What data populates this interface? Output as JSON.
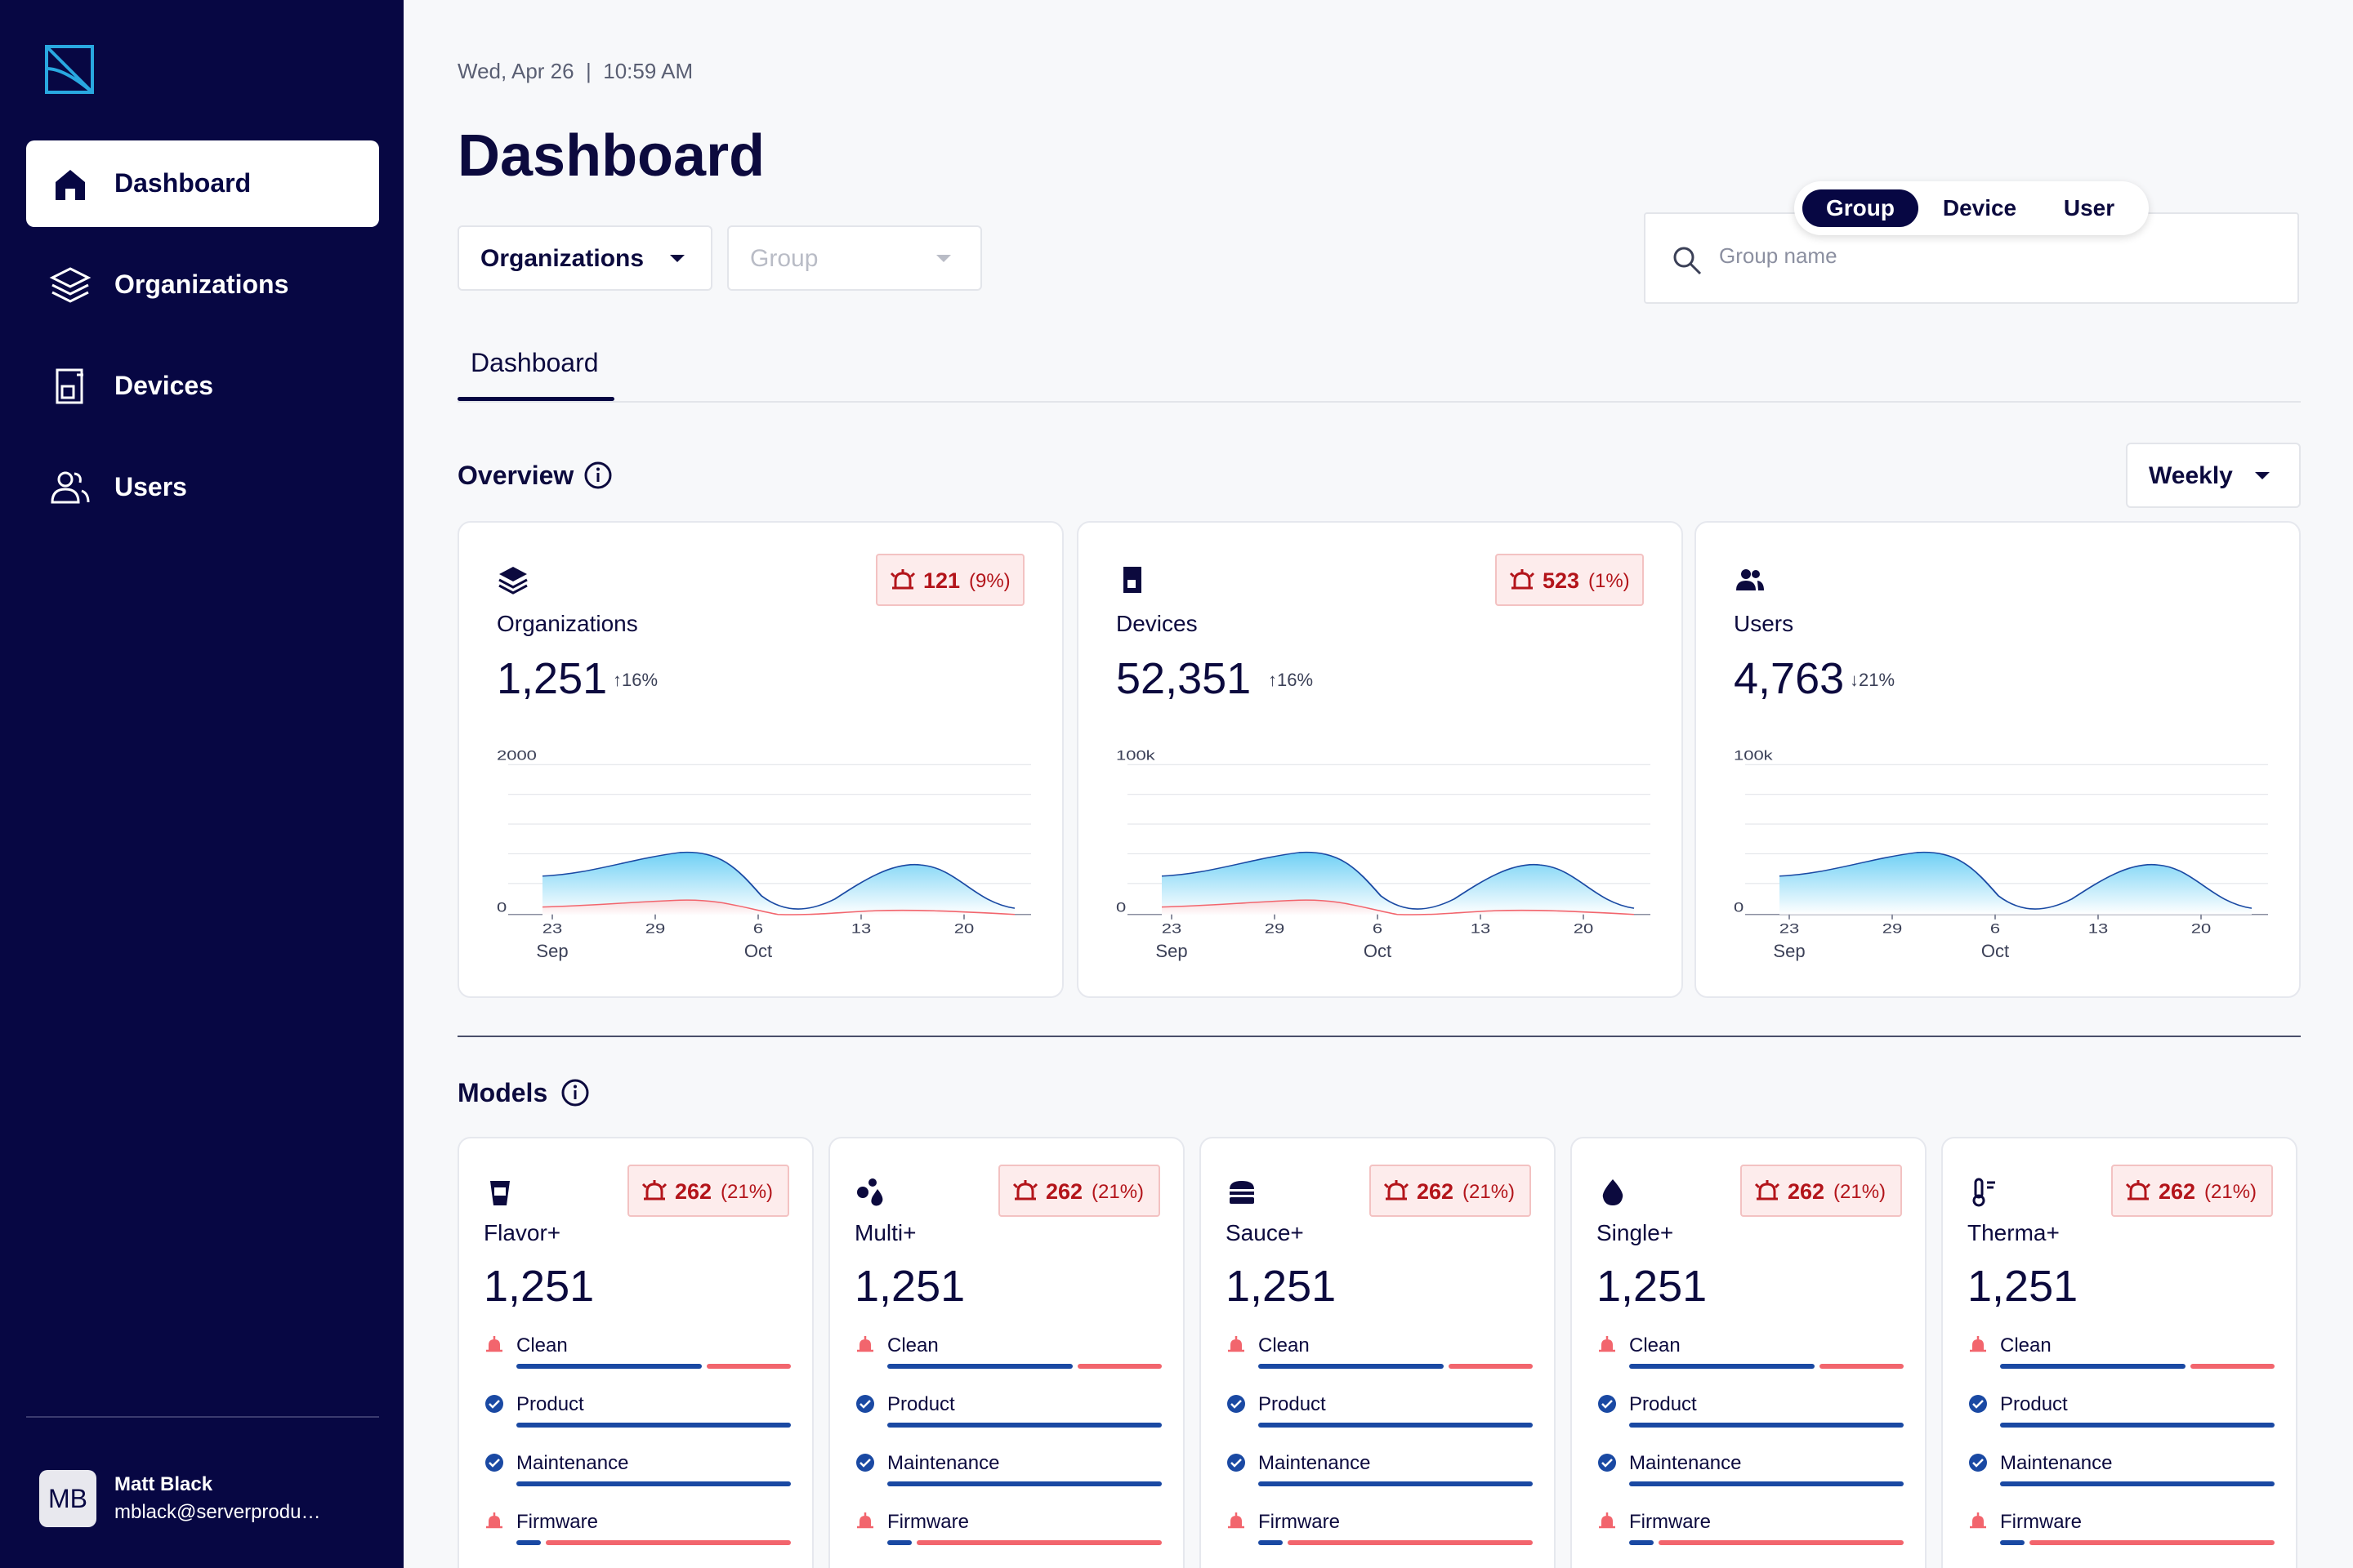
{
  "sidebar": {
    "nav": [
      {
        "label": "Dashboard",
        "icon": "home-icon",
        "active": true
      },
      {
        "label": "Organizations",
        "icon": "layers-icon"
      },
      {
        "label": "Devices",
        "icon": "device-icon"
      },
      {
        "label": "Users",
        "icon": "users-icon"
      }
    ],
    "user": {
      "initials": "MB",
      "name": "Matt Black",
      "email": "mblack@serverprodu…"
    }
  },
  "header": {
    "datetime": "Wed, Apr 26  |  10:59 AM",
    "title": "Dashboard",
    "org_dropdown": "Organizations",
    "group_dropdown": "Group",
    "search": {
      "placeholder": "Group name",
      "segments": [
        "Group",
        "Device",
        "User"
      ],
      "active_segment": "Group"
    },
    "tab": "Dashboard"
  },
  "overview": {
    "title": "Overview",
    "period": "Weekly",
    "cards": [
      {
        "label": "Organizations",
        "value": "1,251",
        "delta": "16%",
        "delta_dir": "up",
        "alert_count": "121",
        "alert_pct": "(9%)",
        "y_max": "2000",
        "y_min": "0",
        "icon": "layers-icon"
      },
      {
        "label": "Devices",
        "value": "52,351",
        "delta": "16%",
        "delta_dir": "up",
        "alert_count": "523",
        "alert_pct": "(1%)",
        "y_max": "100k",
        "y_min": "0",
        "icon": "device-icon"
      },
      {
        "label": "Users",
        "value": "4,763",
        "delta": "21%",
        "delta_dir": "down",
        "alert_count": "",
        "alert_pct": "",
        "y_max": "100k",
        "y_min": "0",
        "icon": "users-icon"
      }
    ],
    "x_ticks": [
      {
        "day": "23",
        "month": "Sep"
      },
      {
        "day": "29",
        "month": ""
      },
      {
        "day": "6",
        "month": "Oct"
      },
      {
        "day": "13",
        "month": ""
      },
      {
        "day": "20",
        "month": ""
      }
    ]
  },
  "models": {
    "title": "Models",
    "row_labels": [
      "Clean",
      "Product",
      "Maintenance",
      "Firmware"
    ],
    "cards": [
      {
        "label": "Flavor+",
        "value": "1,251",
        "alert_count": "262",
        "alert_pct": "(21%)",
        "icon": "cup-icon"
      },
      {
        "label": "Multi+",
        "value": "1,251",
        "alert_count": "262",
        "alert_pct": "(21%)",
        "icon": "drops-icon"
      },
      {
        "label": "Sauce+",
        "value": "1,251",
        "alert_count": "262",
        "alert_pct": "(21%)",
        "icon": "burger-icon"
      },
      {
        "label": "Single+",
        "value": "1,251",
        "alert_count": "262",
        "alert_pct": "(21%)",
        "icon": "drop-icon"
      },
      {
        "label": "Therma+",
        "value": "1,251",
        "alert_count": "262",
        "alert_pct": "(21%)",
        "icon": "thermometer-icon"
      }
    ],
    "row_status": [
      "alert",
      "ok",
      "ok",
      "alert"
    ],
    "row_ok_fraction": [
      0.72,
      1.0,
      1.0,
      0.12
    ]
  },
  "colors": {
    "navy": "#070743",
    "blue": "#1a49a3",
    "red": "#f2656d",
    "alert_text": "#b3141a"
  }
}
